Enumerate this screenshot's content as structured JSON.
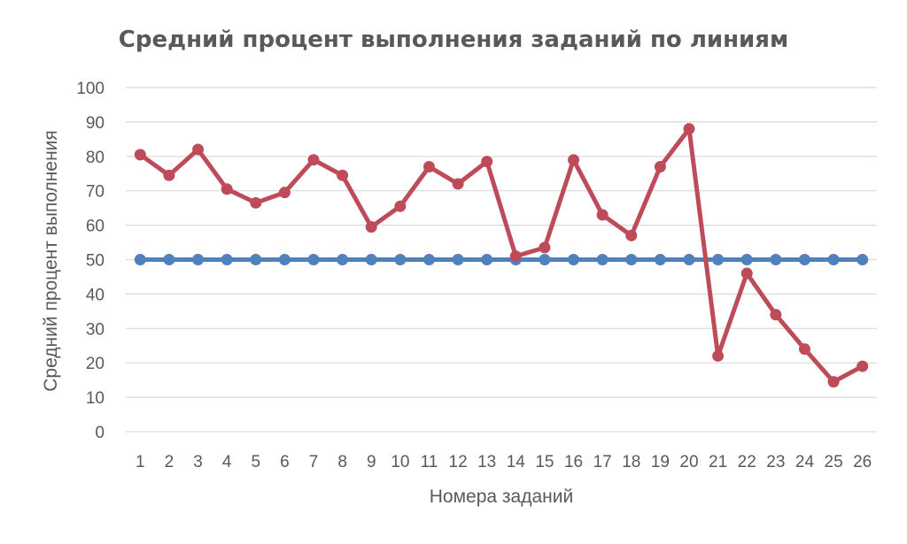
{
  "chart_data": {
    "type": "line",
    "title": "Средний процент выполнения заданий по линиям",
    "xlabel": "Номера заданий",
    "ylabel": "Средний процент выполнения",
    "categories": [
      "1",
      "2",
      "3",
      "4",
      "5",
      "6",
      "7",
      "8",
      "9",
      "10",
      "11",
      "12",
      "13",
      "14",
      "15",
      "16",
      "17",
      "18",
      "19",
      "20",
      "21",
      "22",
      "23",
      "24",
      "25",
      "26"
    ],
    "ylim": [
      0,
      100
    ],
    "yticks": [
      0,
      10,
      20,
      30,
      40,
      50,
      60,
      70,
      80,
      90,
      100
    ],
    "grid": true,
    "legend": "none",
    "series": [
      {
        "color": "#be4b5a",
        "values": [
          80.5,
          74.5,
          82,
          70.5,
          66.5,
          69.5,
          79,
          74.5,
          59.5,
          65.5,
          77,
          72,
          78.5,
          51,
          53.5,
          79,
          63,
          57,
          77,
          88,
          22,
          46,
          34,
          24,
          14.5,
          19
        ]
      },
      {
        "color": "#4f81bd",
        "values": [
          50,
          50,
          50,
          50,
          50,
          50,
          50,
          50,
          50,
          50,
          50,
          50,
          50,
          50,
          50,
          50,
          50,
          50,
          50,
          50,
          50,
          50,
          50,
          50,
          50,
          50
        ]
      }
    ]
  }
}
